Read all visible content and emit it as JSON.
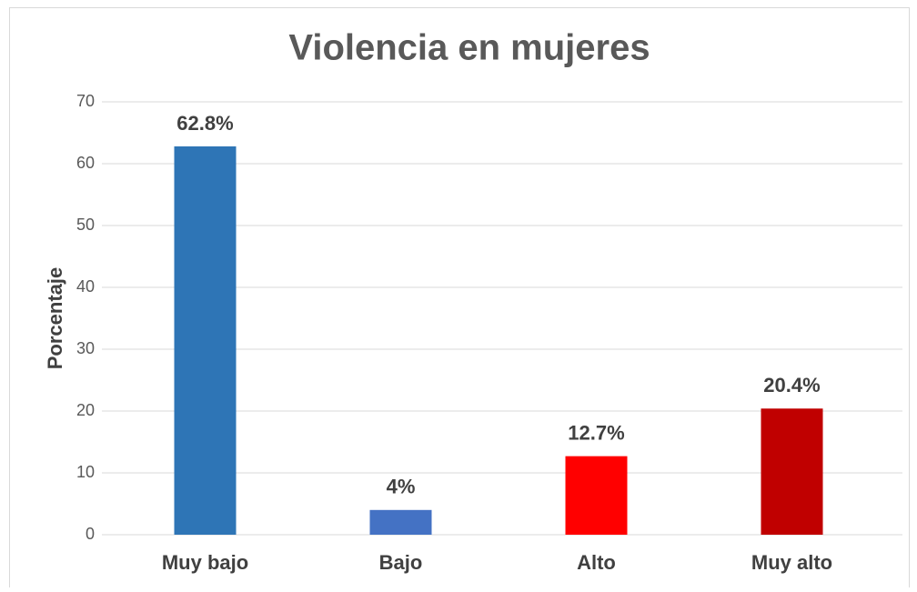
{
  "chart_data": {
    "type": "bar",
    "title": "Violencia en mujeres",
    "y_label": "Porcentaje",
    "categories": [
      "Muy bajo",
      "Bajo",
      "Alto",
      "Muy alto"
    ],
    "values": [
      62.8,
      4,
      12.7,
      20.4
    ],
    "value_labels": [
      "62.8%",
      "4%",
      "12.7%",
      "20.4%"
    ],
    "colors": [
      "#2e75b6",
      "#4472c4",
      "#ff0000",
      "#c00000"
    ],
    "ylim": [
      0,
      70
    ],
    "yticks": [
      0,
      10,
      20,
      30,
      40,
      50,
      60,
      70
    ],
    "grid": true
  }
}
